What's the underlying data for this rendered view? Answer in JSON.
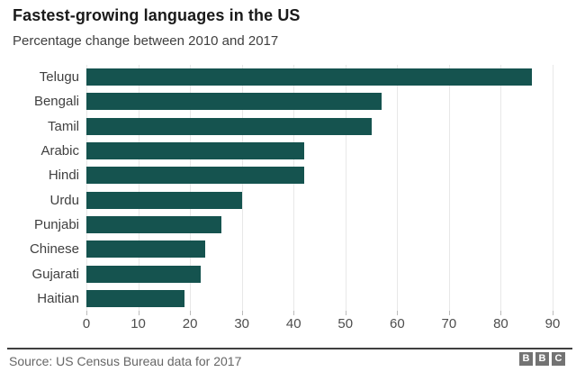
{
  "header": {
    "title": "Fastest-growing languages in the US",
    "subtitle": "Percentage change between 2010 and 2017"
  },
  "chart_data": {
    "type": "bar",
    "orientation": "horizontal",
    "title": "Fastest-growing languages in the US",
    "subtitle": "Percentage change between 2010 and 2017",
    "categories": [
      "Telugu",
      "Bengali",
      "Tamil",
      "Arabic",
      "Hindi",
      "Urdu",
      "Punjabi",
      "Chinese",
      "Gujarati",
      "Haitian"
    ],
    "values": [
      86,
      57,
      55,
      42,
      42,
      30,
      26,
      23,
      22,
      19
    ],
    "xlabel": "",
    "ylabel": "",
    "xlim": [
      0,
      90
    ],
    "xticks": [
      0,
      10,
      20,
      30,
      40,
      50,
      60,
      70,
      80,
      90
    ],
    "grid": true,
    "legend": false,
    "bar_color": "#15534F",
    "gridline_color": "#e8e8e8"
  },
  "footer": {
    "source": "Source: US Census Bureau data for 2017",
    "logo_letters": [
      "B",
      "B",
      "C"
    ]
  }
}
